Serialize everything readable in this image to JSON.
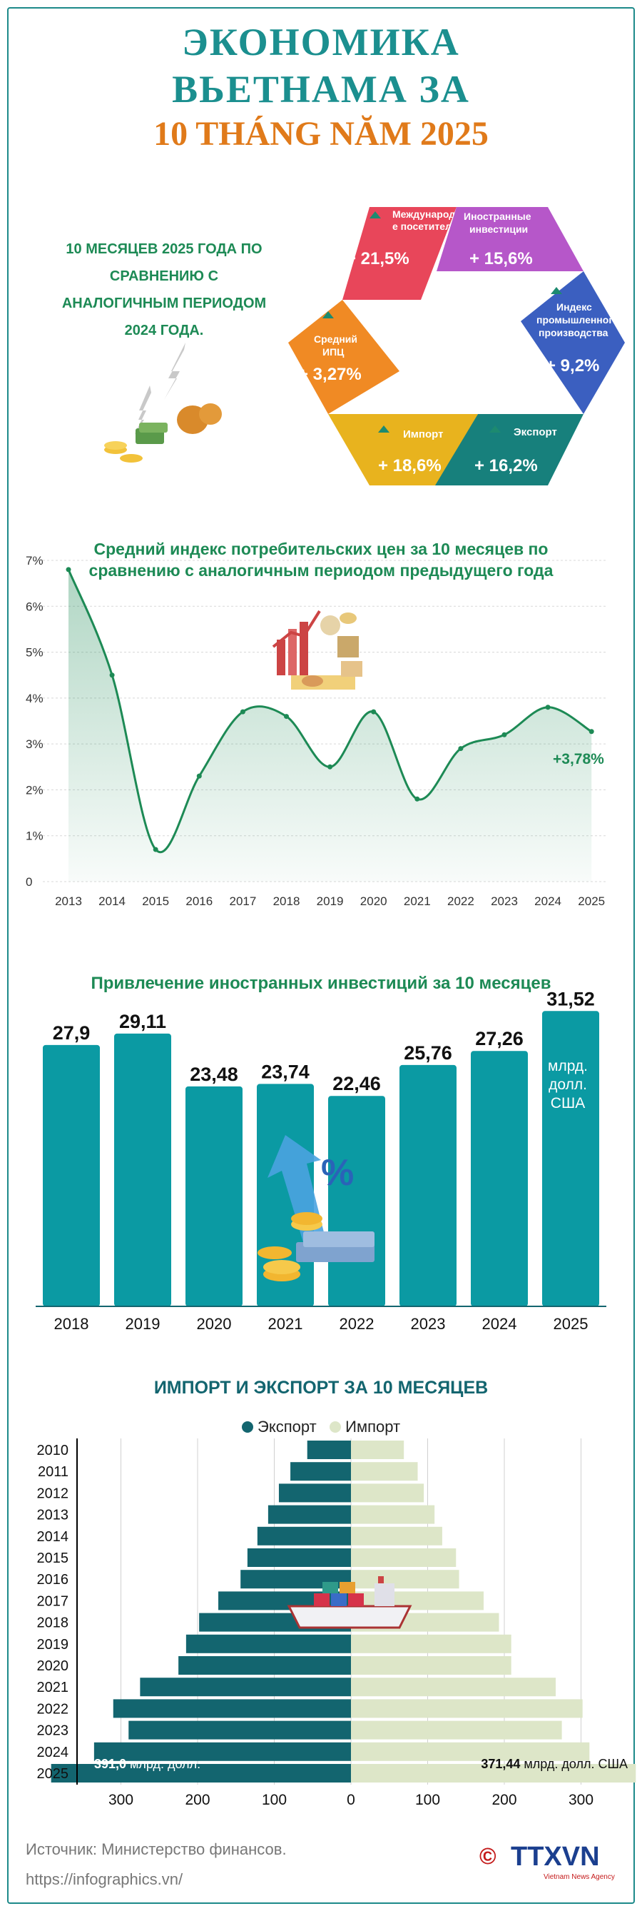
{
  "header": {
    "line1": "ЭКОНОМИКА",
    "line2": "ВЬЕТНАМА ЗА",
    "line3": "10 THÁNG NĂM 2025"
  },
  "intro_text": "10 МЕСЯЦЕВ 2025 ГОДА ПО СРАВНЕНИЮ С АНАЛОГИЧНЫМ ПЕРИОДОМ 2024 ГОДА.",
  "indicators": [
    {
      "label_lines": [
        "Международны",
        "е посетители"
      ],
      "value": "+ 21,5%",
      "color": "#e8465a"
    },
    {
      "label_lines": [
        "Иностранные",
        "инвестиции"
      ],
      "value": "+ 15,6%",
      "color": "#b657c9"
    },
    {
      "label_lines": [
        "Индекс",
        "промышленного",
        "производства"
      ],
      "value": "+ 9,2%",
      "color": "#3b5fc0"
    },
    {
      "label_lines": [
        "Экспорт"
      ],
      "value": "+ 16,2%",
      "color": "#17807c"
    },
    {
      "label_lines": [
        "Импорт"
      ],
      "value": "+ 18,6%",
      "color": "#e8b31e"
    },
    {
      "label_lines": [
        "Средний",
        "ИПЦ"
      ],
      "value": "+ 3,27%",
      "color": "#f08a24"
    }
  ],
  "cpi": {
    "title_line1": "Средний индекс потребительских цен за 10 месяцев по",
    "title_line2": "сравнению с аналогичным периодом предыдущего года",
    "last_label": "+3,78%"
  },
  "fdi": {
    "title": "Привлечение иностранных инвестиций за 10 месяцев",
    "unit_lines": [
      "млрд.",
      "долл.",
      "США"
    ]
  },
  "trade": {
    "title": "ИМПОРТ И ЭКСПОРТ ЗА 10 МЕСЯЦЕВ",
    "legend_export": "Экспорт",
    "legend_import": "Импорт",
    "export_label_value": "391,0",
    "export_label_unit": " млрд. долл.",
    "import_label_value": "371,44",
    "import_label_unit": " млрд. долл. США"
  },
  "footer": {
    "source": "Источник: Министерство финансов.",
    "url": "https://infographics.vn/",
    "logo_text": "TTXVN",
    "logo_sub": "Vietnam News Agency",
    "copyright": "©"
  },
  "colors": {
    "teal": "#0b9aa3",
    "dark_teal": "#13656f",
    "light_green": "#dde6c8",
    "green_text": "#1d8a55"
  },
  "chart_data": [
    {
      "type": "area",
      "title": "Средний индекс потребительских цен за 10 месяцев по сравнению с аналогичным периодом предыдущего года",
      "x": [
        "2013",
        "2014",
        "2015",
        "2016",
        "2017",
        "2018",
        "2019",
        "2020",
        "2021",
        "2022",
        "2023",
        "2024",
        "2025"
      ],
      "values": [
        6.8,
        4.5,
        0.7,
        2.3,
        3.7,
        3.6,
        2.5,
        3.7,
        1.8,
        2.9,
        3.2,
        3.8,
        3.27
      ],
      "y_ticks": [
        "0",
        "1%",
        "2%",
        "3%",
        "4%",
        "5%",
        "6%",
        "7%"
      ],
      "ylim": [
        0,
        7
      ],
      "grid": true
    },
    {
      "type": "bar",
      "title": "Привлечение иностранных инвестиций за 10 месяцев",
      "categories": [
        "2018",
        "2019",
        "2020",
        "2021",
        "2022",
        "2023",
        "2024",
        "2025"
      ],
      "values": [
        27.9,
        29.11,
        23.48,
        23.74,
        22.46,
        25.76,
        27.26,
        31.52
      ],
      "value_labels": [
        "27,9",
        "29,11",
        "23,48",
        "23,74",
        "22,46",
        "25,76",
        "27,26",
        "31,52"
      ],
      "ylim": [
        0,
        32
      ]
    },
    {
      "type": "bar",
      "orientation": "horizontal-diverging",
      "title": "ИМПОРТ И ЭКСПОРТ ЗА 10 МЕСЯЦЕВ",
      "categories": [
        "2010",
        "2011",
        "2012",
        "2013",
        "2014",
        "2015",
        "2016",
        "2017",
        "2018",
        "2019",
        "2020",
        "2021",
        "2022",
        "2023",
        "2024",
        "2025"
      ],
      "series": [
        {
          "name": "Экспорт",
          "values": [
            57,
            79,
            94,
            108,
            122,
            135,
            144,
            173,
            198,
            215,
            225,
            275,
            310,
            290,
            335,
            391.0
          ]
        },
        {
          "name": "Импорт",
          "values": [
            69,
            87,
            95,
            109,
            119,
            137,
            141,
            173,
            193,
            209,
            209,
            267,
            302,
            275,
            311,
            371.44
          ]
        }
      ],
      "x_ticks": [
        "300",
        "200",
        "100",
        "0",
        "100",
        "200",
        "300"
      ],
      "xlim": [
        -400,
        400
      ]
    }
  ]
}
